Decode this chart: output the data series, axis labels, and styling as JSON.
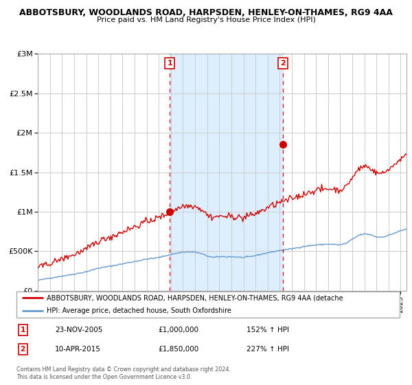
{
  "title1": "ABBOTSBURY, WOODLANDS ROAD, HARPSDEN, HENLEY-ON-THAMES, RG9 4AA",
  "title2": "Price paid vs. HM Land Registry's House Price Index (HPI)",
  "xlim_start": 1995.0,
  "xlim_end": 2025.5,
  "ylim": [
    0,
    3000001
  ],
  "shaded_region": [
    2005.9,
    2015.27
  ],
  "shaded_color": "#ddeeff",
  "grid_color": "#cccccc",
  "sale1_x": 2005.9,
  "sale1_y": 1000000,
  "sale1_label": "1",
  "sale2_x": 2015.27,
  "sale2_y": 1850000,
  "sale2_label": "2",
  "legend_red_label": "ABBOTSBURY, WOODLANDS ROAD, HARPSDEN, HENLEY-ON-THAMES, RG9 4AA (detache",
  "legend_blue_label": "HPI: Average price, detached house, South Oxfordshire",
  "annotation1_date": "23-NOV-2005",
  "annotation1_price": "£1,000,000",
  "annotation1_hpi": "152% ↑ HPI",
  "annotation2_date": "10-APR-2015",
  "annotation2_price": "£1,850,000",
  "annotation2_hpi": "227% ↑ HPI",
  "footer": "Contains HM Land Registry data © Crown copyright and database right 2024.\nThis data is licensed under the Open Government Licence v3.0.",
  "red_line_color": "#cc0000",
  "blue_line_color": "#6699cc",
  "yticks": [
    0,
    500000,
    1000000,
    1500000,
    2000000,
    2500000,
    3000000
  ],
  "ytick_labels": [
    "£0",
    "£500K",
    "£1M",
    "£1.5M",
    "£2M",
    "£2.5M",
    "£3M"
  ]
}
